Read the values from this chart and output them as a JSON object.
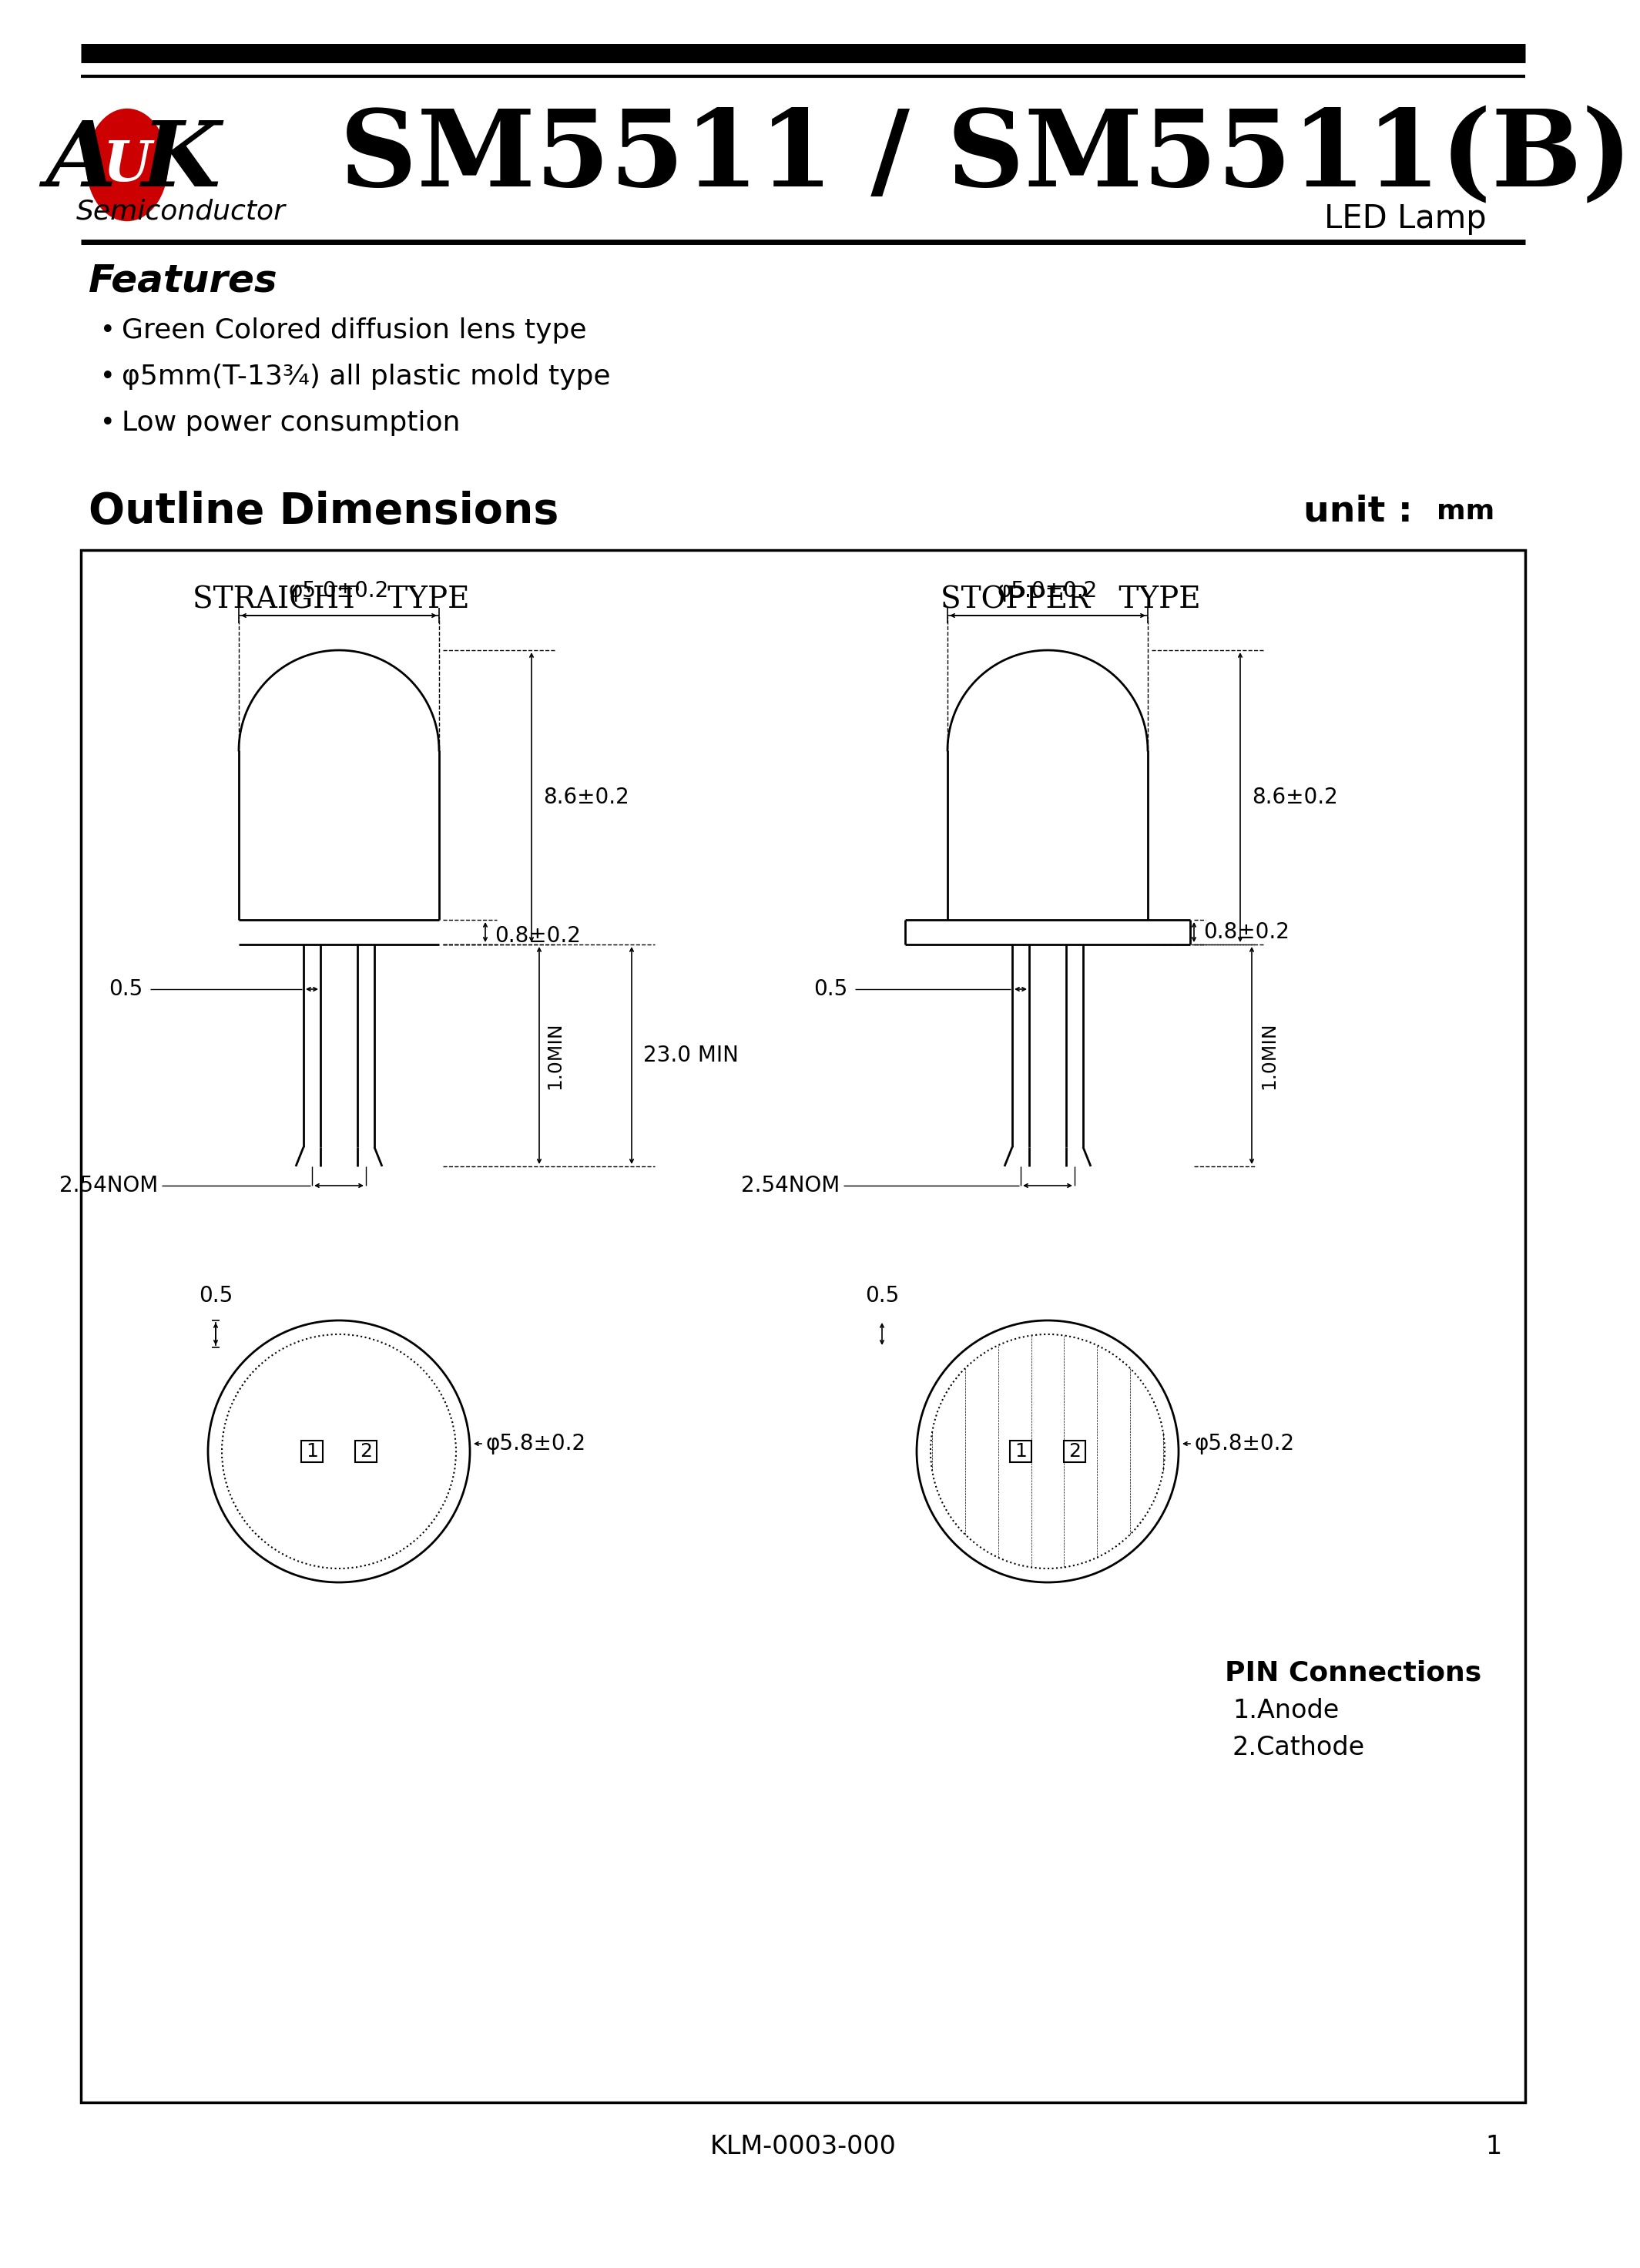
{
  "title": "SM5511 / SM5511(B)",
  "subtitle": "LED Lamp",
  "company_sub": "Semiconductor",
  "features_title": "Features",
  "features": [
    "Green Colored diffusion lens type",
    "φ5mm(T-13¾) all plastic mold type",
    "Low power consumption"
  ],
  "outline_title": "Outline Dimensions",
  "unit_label": "unit : mm",
  "straight_type_label": "STRAIGHT   TYPE",
  "stopper_type_label": "STOPPER   TYPE",
  "footer": "KLM-0003-000",
  "page": "1",
  "pin_connections_title": "PIN Connections",
  "pin_connections": [
    "1.Anode",
    "2.Cathode"
  ],
  "dims": {
    "phi_top": "φ5.0±0.2",
    "phi_bottom": "φ5.8±0.2",
    "dim_86": "8.6±0.2",
    "dim_08": "0.8±0.2",
    "dim_05_lead": "0.5",
    "dim_23": "23.0 MIN",
    "dim_10": "1.0MIN",
    "dim_254": "2.54NOM",
    "dim_05_base": "0.5"
  },
  "background": "#ffffff",
  "black": "#000000",
  "red": "#cc0000"
}
